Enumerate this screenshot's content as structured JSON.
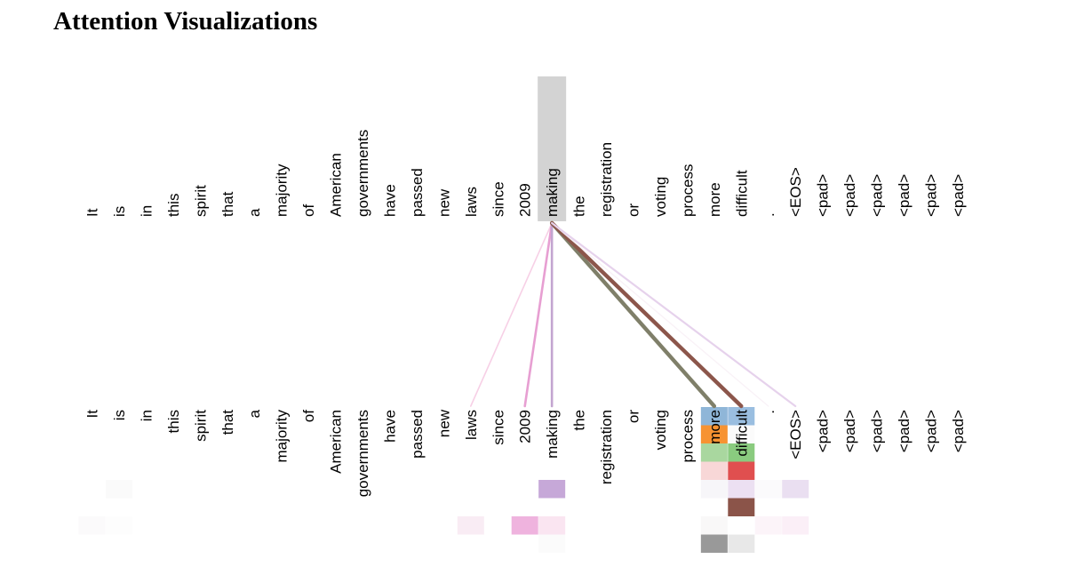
{
  "title": "Attention Visualizations",
  "tokens": [
    "It",
    "is",
    "in",
    "this",
    "spirit",
    "that",
    "a",
    "majority",
    "of",
    "American",
    "governments",
    "have",
    "passed",
    "new",
    "laws",
    "since",
    "2009",
    "making",
    "the",
    "registration",
    "or",
    "voting",
    "process",
    "more",
    "difficult",
    ".",
    "<EOS>",
    "<pad>",
    "<pad>",
    "<pad>",
    "<pad>",
    "<pad>",
    "<pad>"
  ],
  "query_index": 17,
  "attention_lines": [
    {
      "target": 14,
      "color": "#f7d0e6",
      "weight": 0.15
    },
    {
      "target": 16,
      "color": "#e79fd2",
      "weight": 0.4
    },
    {
      "target": 17,
      "color": "#c3a5d0",
      "weight": 0.4
    },
    {
      "target": 23,
      "color": "#7f7f69",
      "weight": 0.85
    },
    {
      "target": 24,
      "color": "#8c564b",
      "weight": 0.85
    },
    {
      "target": 25,
      "color": "#f9f2f7",
      "weight": 0.1
    },
    {
      "target": 26,
      "color": "#e6d2ec",
      "weight": 0.3
    }
  ],
  "head_cells": [
    {
      "col": 23,
      "row": 0,
      "color": "#8fb6d8"
    },
    {
      "col": 24,
      "row": 0,
      "color": "#9abee0"
    },
    {
      "col": 23,
      "row": 1,
      "color": "#f79332"
    },
    {
      "col": 24,
      "row": 1,
      "color": "#fbfbfb"
    },
    {
      "col": 23,
      "row": 2,
      "color": "#a9d79f"
    },
    {
      "col": 24,
      "row": 2,
      "color": "#8acb7f"
    },
    {
      "col": 23,
      "row": 3,
      "color": "#f8d7d7"
    },
    {
      "col": 24,
      "row": 3,
      "color": "#e04f4f"
    },
    {
      "col": 1,
      "row": 4,
      "color": "#fafafa"
    },
    {
      "col": 17,
      "row": 4,
      "color": "#c6a8d8"
    },
    {
      "col": 23,
      "row": 4,
      "color": "#f7f6f9"
    },
    {
      "col": 24,
      "row": 4,
      "color": "#ece0f2"
    },
    {
      "col": 25,
      "row": 4,
      "color": "#fbfafc"
    },
    {
      "col": 26,
      "row": 4,
      "color": "#eadff1"
    },
    {
      "col": 24,
      "row": 5,
      "color": "#8b5449"
    },
    {
      "col": 0,
      "row": 6,
      "color": "#fbfafb"
    },
    {
      "col": 1,
      "row": 6,
      "color": "#fdfdfd"
    },
    {
      "col": 14,
      "row": 6,
      "color": "#f9ecf4"
    },
    {
      "col": 16,
      "row": 6,
      "color": "#efb3de"
    },
    {
      "col": 17,
      "row": 6,
      "color": "#fae5f1"
    },
    {
      "col": 23,
      "row": 6,
      "color": "#f9f8f8"
    },
    {
      "col": 25,
      "row": 6,
      "color": "#fcf4f9"
    },
    {
      "col": 26,
      "row": 6,
      "color": "#fbeff7"
    },
    {
      "col": 23,
      "row": 7,
      "color": "#999999"
    },
    {
      "col": 24,
      "row": 7,
      "color": "#e8e8e8"
    },
    {
      "col": 17,
      "row": 7,
      "color": "#fbfbfb"
    }
  ]
}
